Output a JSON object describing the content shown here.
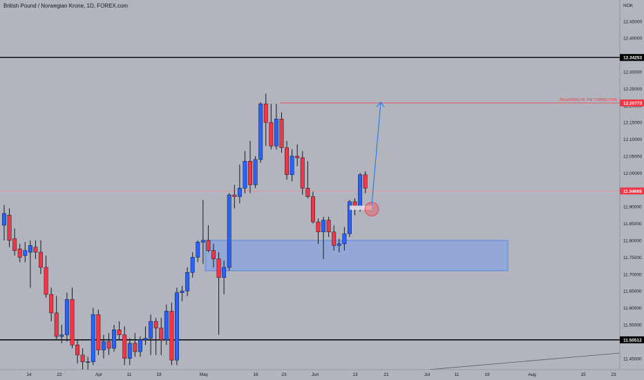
{
  "header": {
    "symbol_title": "British Pound / Norwegian Krone, 1D, FOREX.com",
    "currency": "NOK"
  },
  "colors": {
    "background": "#b2b5be",
    "bull": "#2962ff",
    "bear": "#f23645",
    "wick": "#131722",
    "zone_fill": "#8fa6d9",
    "zone_border": "#5b86e0",
    "arrow": "#2e7ce8",
    "hline": "#000000",
    "correction_line": "#f23645",
    "price_line": "#e8888f"
  },
  "chart_data": {
    "type": "candlestick",
    "title": "British Pound / Norwegian Krone, 1D, FOREX.com",
    "y_unit": "NOK",
    "ylim": [
      11.43,
      12.52
    ],
    "y_ticks": [
      "12.45000",
      "12.40000",
      "12.30000",
      "12.25000",
      "12.20000",
      "12.15000",
      "12.10000",
      "12.05000",
      "12.00000",
      "11.95000",
      "11.90000",
      "11.85000",
      "11.80000",
      "11.75000",
      "11.70000",
      "11.65000",
      "11.60000",
      "11.55000",
      "11.45000"
    ],
    "x_ticks": [
      "14",
      "22",
      "Apr",
      "11",
      "19",
      "May",
      "16",
      "23",
      "Jun",
      "13",
      "21",
      "Jul",
      "11",
      "19",
      "Aug",
      "15",
      "23"
    ],
    "candles": [
      {
        "o": 11.845,
        "h": 11.905,
        "l": 11.8,
        "c": 11.88
      },
      {
        "o": 11.875,
        "h": 11.895,
        "l": 11.78,
        "c": 11.8
      },
      {
        "o": 11.805,
        "h": 11.835,
        "l": 11.755,
        "c": 11.77
      },
      {
        "o": 11.775,
        "h": 11.79,
        "l": 11.735,
        "c": 11.75
      },
      {
        "o": 11.755,
        "h": 11.795,
        "l": 11.735,
        "c": 11.77
      },
      {
        "o": 11.765,
        "h": 11.8,
        "l": 11.66,
        "c": 11.785
      },
      {
        "o": 11.78,
        "h": 11.8,
        "l": 11.745,
        "c": 11.765
      },
      {
        "o": 11.765,
        "h": 11.8,
        "l": 11.7,
        "c": 11.72
      },
      {
        "o": 11.72,
        "h": 11.755,
        "l": 11.63,
        "c": 11.64
      },
      {
        "o": 11.64,
        "h": 11.66,
        "l": 11.56,
        "c": 11.585
      },
      {
        "o": 11.585,
        "h": 11.635,
        "l": 11.505,
        "c": 11.515
      },
      {
        "o": 11.515,
        "h": 11.55,
        "l": 11.495,
        "c": 11.52
      },
      {
        "o": 11.52,
        "h": 11.645,
        "l": 11.5,
        "c": 11.625
      },
      {
        "o": 11.625,
        "h": 11.66,
        "l": 11.48,
        "c": 11.49
      },
      {
        "o": 11.49,
        "h": 11.505,
        "l": 11.435,
        "c": 11.46
      },
      {
        "o": 11.46,
        "h": 11.48,
        "l": 11.41,
        "c": 11.44
      },
      {
        "o": 11.44,
        "h": 11.455,
        "l": 11.41,
        "c": 11.44
      },
      {
        "o": 11.44,
        "h": 11.6,
        "l": 11.43,
        "c": 11.58
      },
      {
        "o": 11.58,
        "h": 11.595,
        "l": 11.46,
        "c": 11.475
      },
      {
        "o": 11.475,
        "h": 11.52,
        "l": 11.45,
        "c": 11.5
      },
      {
        "o": 11.5,
        "h": 11.525,
        "l": 11.46,
        "c": 11.48
      },
      {
        "o": 11.48,
        "h": 11.55,
        "l": 11.47,
        "c": 11.535
      },
      {
        "o": 11.535,
        "h": 11.56,
        "l": 11.505,
        "c": 11.52
      },
      {
        "o": 11.52,
        "h": 11.545,
        "l": 11.43,
        "c": 11.45
      },
      {
        "o": 11.45,
        "h": 11.51,
        "l": 11.43,
        "c": 11.495
      },
      {
        "o": 11.495,
        "h": 11.525,
        "l": 11.455,
        "c": 11.47
      },
      {
        "o": 11.47,
        "h": 11.515,
        "l": 11.455,
        "c": 11.505
      },
      {
        "o": 11.505,
        "h": 11.545,
        "l": 11.49,
        "c": 11.51
      },
      {
        "o": 11.51,
        "h": 11.58,
        "l": 11.46,
        "c": 11.56
      },
      {
        "o": 11.56,
        "h": 11.57,
        "l": 11.46,
        "c": 11.54
      },
      {
        "o": 11.54,
        "h": 11.57,
        "l": 11.46,
        "c": 11.505
      },
      {
        "o": 11.505,
        "h": 11.61,
        "l": 11.49,
        "c": 11.59
      },
      {
        "o": 11.59,
        "h": 11.615,
        "l": 11.43,
        "c": 11.445
      },
      {
        "o": 11.445,
        "h": 11.66,
        "l": 11.43,
        "c": 11.645
      },
      {
        "o": 11.645,
        "h": 11.665,
        "l": 11.62,
        "c": 11.65
      },
      {
        "o": 11.65,
        "h": 11.72,
        "l": 11.635,
        "c": 11.705
      },
      {
        "o": 11.705,
        "h": 11.765,
        "l": 11.69,
        "c": 11.75
      },
      {
        "o": 11.75,
        "h": 11.8,
        "l": 11.735,
        "c": 11.795
      },
      {
        "o": 11.795,
        "h": 11.92,
        "l": 11.73,
        "c": 11.8
      },
      {
        "o": 11.8,
        "h": 11.845,
        "l": 11.765,
        "c": 11.77
      },
      {
        "o": 11.77,
        "h": 11.79,
        "l": 11.72,
        "c": 11.745
      },
      {
        "o": 11.745,
        "h": 11.765,
        "l": 11.52,
        "c": 11.69
      },
      {
        "o": 11.69,
        "h": 11.74,
        "l": 11.64,
        "c": 11.72
      },
      {
        "o": 11.72,
        "h": 11.94,
        "l": 11.71,
        "c": 11.935
      },
      {
        "o": 11.935,
        "h": 11.965,
        "l": 11.895,
        "c": 11.93
      },
      {
        "o": 11.93,
        "h": 12.025,
        "l": 11.91,
        "c": 11.955
      },
      {
        "o": 11.955,
        "h": 12.065,
        "l": 11.94,
        "c": 12.035
      },
      {
        "o": 12.035,
        "h": 12.095,
        "l": 11.94,
        "c": 11.965
      },
      {
        "o": 11.965,
        "h": 12.05,
        "l": 11.955,
        "c": 12.04
      },
      {
        "o": 12.04,
        "h": 12.21,
        "l": 12.03,
        "c": 12.205
      },
      {
        "o": 12.205,
        "h": 12.235,
        "l": 12.08,
        "c": 12.15
      },
      {
        "o": 12.15,
        "h": 12.205,
        "l": 12.07,
        "c": 12.08
      },
      {
        "o": 12.08,
        "h": 12.205,
        "l": 12.07,
        "c": 12.16
      },
      {
        "o": 12.16,
        "h": 12.18,
        "l": 12.06,
        "c": 12.075
      },
      {
        "o": 12.075,
        "h": 12.095,
        "l": 11.98,
        "c": 11.995
      },
      {
        "o": 11.995,
        "h": 12.07,
        "l": 11.975,
        "c": 12.05
      },
      {
        "o": 12.05,
        "h": 12.085,
        "l": 12.02,
        "c": 12.045
      },
      {
        "o": 12.045,
        "h": 12.065,
        "l": 11.935,
        "c": 11.955
      },
      {
        "o": 11.955,
        "h": 12.035,
        "l": 11.925,
        "c": 11.93
      },
      {
        "o": 11.93,
        "h": 11.945,
        "l": 11.85,
        "c": 11.855
      },
      {
        "o": 11.855,
        "h": 11.865,
        "l": 11.79,
        "c": 11.825
      },
      {
        "o": 11.825,
        "h": 11.87,
        "l": 11.745,
        "c": 11.86
      },
      {
        "o": 11.86,
        "h": 11.87,
        "l": 11.81,
        "c": 11.825
      },
      {
        "o": 11.825,
        "h": 11.845,
        "l": 11.77,
        "c": 11.785
      },
      {
        "o": 11.785,
        "h": 11.805,
        "l": 11.765,
        "c": 11.79
      },
      {
        "o": 11.79,
        "h": 11.84,
        "l": 11.77,
        "c": 11.82
      },
      {
        "o": 11.82,
        "h": 11.92,
        "l": 11.81,
        "c": 11.915
      },
      {
        "o": 11.915,
        "h": 11.925,
        "l": 11.875,
        "c": 11.895
      },
      {
        "o": 11.895,
        "h": 12.0,
        "l": 11.885,
        "c": 11.995
      },
      {
        "o": 11.995,
        "h": 12.005,
        "l": 11.94,
        "c": 11.955
      }
    ],
    "price_labels": [
      {
        "value": 12.34253,
        "text": "12.34253",
        "style": "black"
      },
      {
        "value": 12.20773,
        "text": "12.20773",
        "style": "red"
      },
      {
        "value": 11.94669,
        "text": "11.94669",
        "style": "red"
      },
      {
        "value": 11.50512,
        "text": "11.50512",
        "style": "black"
      }
    ],
    "horizontal_lines": [
      {
        "value": 12.34253,
        "type": "support-resistance"
      },
      {
        "value": 11.50512,
        "type": "support-resistance"
      }
    ],
    "correction_line": {
      "value": 12.20773,
      "label": "BEGINNING OF THE CORRECTION"
    },
    "last_price_line": {
      "value": 11.94669
    },
    "zone": {
      "top": 11.8,
      "bottom": 11.71
    },
    "marker_circle": {
      "value": 11.897
    },
    "arrow": {
      "from": 11.905,
      "to": 12.21
    }
  }
}
